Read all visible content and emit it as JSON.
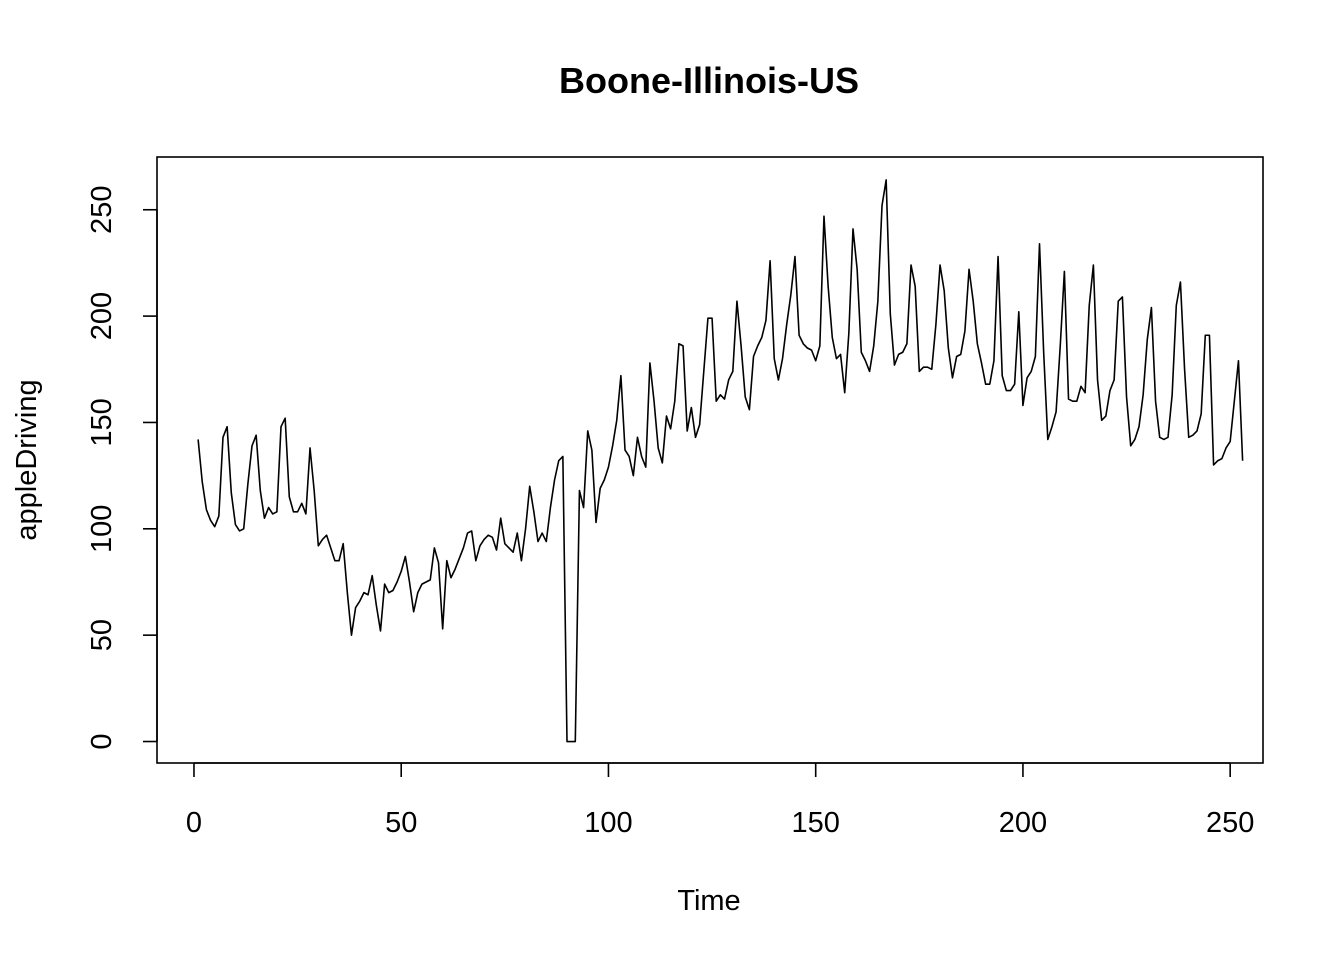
{
  "chart_data": {
    "type": "line",
    "title": "Boone-Illinois-US",
    "xlabel": "Time",
    "ylabel": "appleDriving",
    "xlim": [
      -8.92,
      257.92
    ],
    "ylim": [
      -10.1,
      274.8
    ],
    "xticks": [
      0,
      50,
      100,
      150,
      200,
      250
    ],
    "yticks": [
      0,
      50,
      100,
      150,
      200,
      250
    ],
    "xtick_labels": [
      "0",
      "50",
      "100",
      "150",
      "200",
      "250"
    ],
    "ytick_labels": [
      "0",
      "50",
      "100",
      "150",
      "200",
      "250"
    ],
    "grid": false,
    "legend": "none",
    "colors": {
      "line": "#000000",
      "frame": "#000000",
      "background": "#ffffff"
    },
    "series": [
      {
        "x_start": 1,
        "values": [
          142,
          122,
          109,
          104,
          101,
          106,
          143,
          148,
          117,
          102,
          99,
          100,
          121,
          139,
          144,
          118,
          105,
          110,
          107,
          108,
          148,
          152,
          115,
          108,
          108,
          112,
          107,
          138,
          118,
          92,
          95,
          97,
          91,
          85,
          85,
          93,
          70,
          50,
          63,
          66,
          70,
          69,
          78,
          64,
          52,
          74,
          70,
          71,
          75,
          80,
          87,
          75,
          61,
          70,
          74,
          75,
          76,
          91,
          84,
          53,
          85,
          77,
          81,
          86,
          91,
          98,
          99,
          85,
          92,
          95,
          97,
          96,
          90,
          105,
          93,
          91,
          89,
          98,
          85,
          100,
          120,
          108,
          94,
          98,
          94,
          110,
          123,
          132,
          134,
          0,
          0,
          0,
          118,
          110,
          146,
          137,
          103,
          119,
          123,
          129,
          139,
          151,
          172,
          137,
          134,
          125,
          143,
          134,
          129,
          178,
          160,
          138,
          131,
          153,
          147,
          160,
          187,
          186,
          146,
          157,
          143,
          149,
          174,
          199,
          199,
          160,
          163,
          161,
          170,
          174,
          207,
          186,
          162,
          156,
          181,
          186,
          190,
          198,
          226,
          180,
          170,
          180,
          196,
          210,
          228,
          191,
          187,
          185,
          184,
          179,
          186,
          247,
          214,
          190,
          180,
          182,
          164,
          192,
          241,
          222,
          183,
          179,
          174,
          186,
          207,
          252,
          264,
          201,
          177,
          182,
          183,
          187,
          224,
          214,
          174,
          176,
          176,
          175,
          196,
          224,
          212,
          185,
          171,
          181,
          182,
          193,
          222,
          207,
          187,
          178,
          168,
          168,
          179,
          228,
          172,
          165,
          165,
          168,
          202,
          158,
          171,
          174,
          181,
          234,
          183,
          142,
          148,
          155,
          186,
          221,
          161,
          160,
          160,
          167,
          164,
          205,
          224,
          170,
          151,
          153,
          165,
          170,
          207,
          209,
          162,
          139,
          142,
          148,
          163,
          189,
          204,
          160,
          143,
          142,
          143,
          163,
          205,
          216,
          175,
          143,
          144,
          146,
          154,
          191,
          191,
          130,
          132,
          133,
          138,
          141,
          160,
          179,
          132
        ]
      }
    ]
  }
}
